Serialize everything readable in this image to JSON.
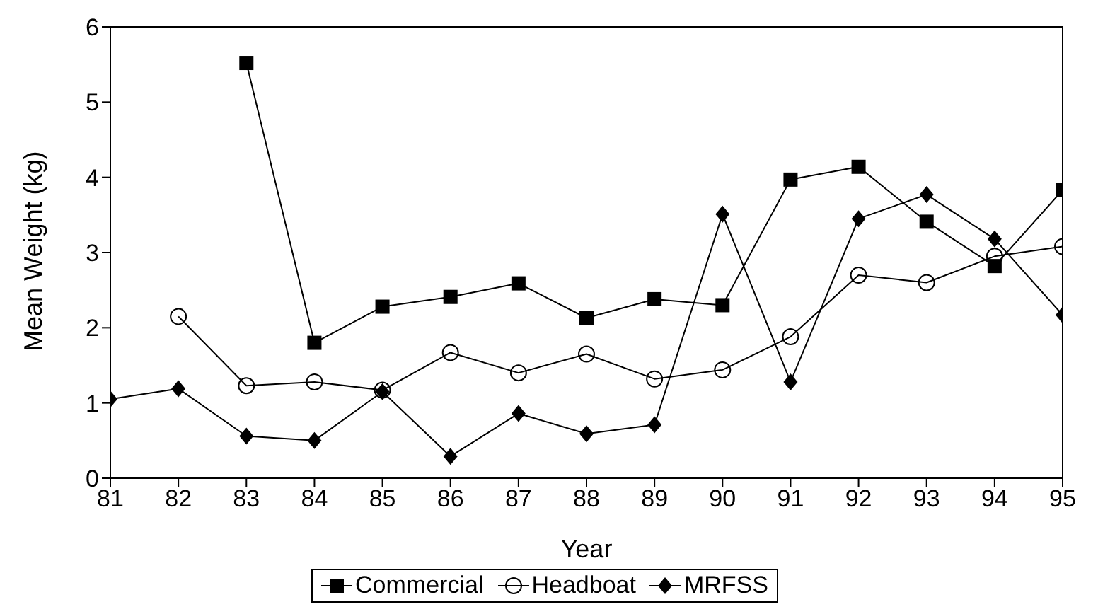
{
  "chart_data": {
    "type": "line",
    "xlabel": "Year",
    "ylabel": "Mean Weight (kg)",
    "x": [
      81,
      82,
      83,
      84,
      85,
      86,
      87,
      88,
      89,
      90,
      91,
      92,
      93,
      94,
      95
    ],
    "series": [
      {
        "name": "Commercial",
        "color": "#000000",
        "marker": "square",
        "values": [
          null,
          null,
          5.52,
          1.8,
          2.28,
          2.41,
          2.59,
          2.13,
          2.38,
          2.3,
          3.97,
          4.14,
          3.41,
          2.82,
          3.83
        ]
      },
      {
        "name": "Headboat",
        "color": "#000000",
        "marker": "circle",
        "values": [
          null,
          2.15,
          1.23,
          1.28,
          1.17,
          1.67,
          1.4,
          1.65,
          1.32,
          1.44,
          1.88,
          2.7,
          2.6,
          2.95,
          3.08
        ]
      },
      {
        "name": "MRFSS",
        "color": "#000000",
        "marker": "diamond",
        "values": [
          1.05,
          1.19,
          0.56,
          0.5,
          1.15,
          0.29,
          0.86,
          0.59,
          0.71,
          3.51,
          1.28,
          3.45,
          3.77,
          3.18,
          2.17
        ]
      }
    ],
    "xlim": [
      81,
      95
    ],
    "xticks": [
      81,
      82,
      83,
      84,
      85,
      86,
      87,
      88,
      89,
      90,
      91,
      92,
      93,
      94,
      95
    ],
    "ylim": [
      0,
      6
    ],
    "yticks": [
      0,
      1,
      2,
      3,
      4,
      5,
      6
    ],
    "grid": false,
    "legend": "bottom",
    "line_style": "solid"
  }
}
